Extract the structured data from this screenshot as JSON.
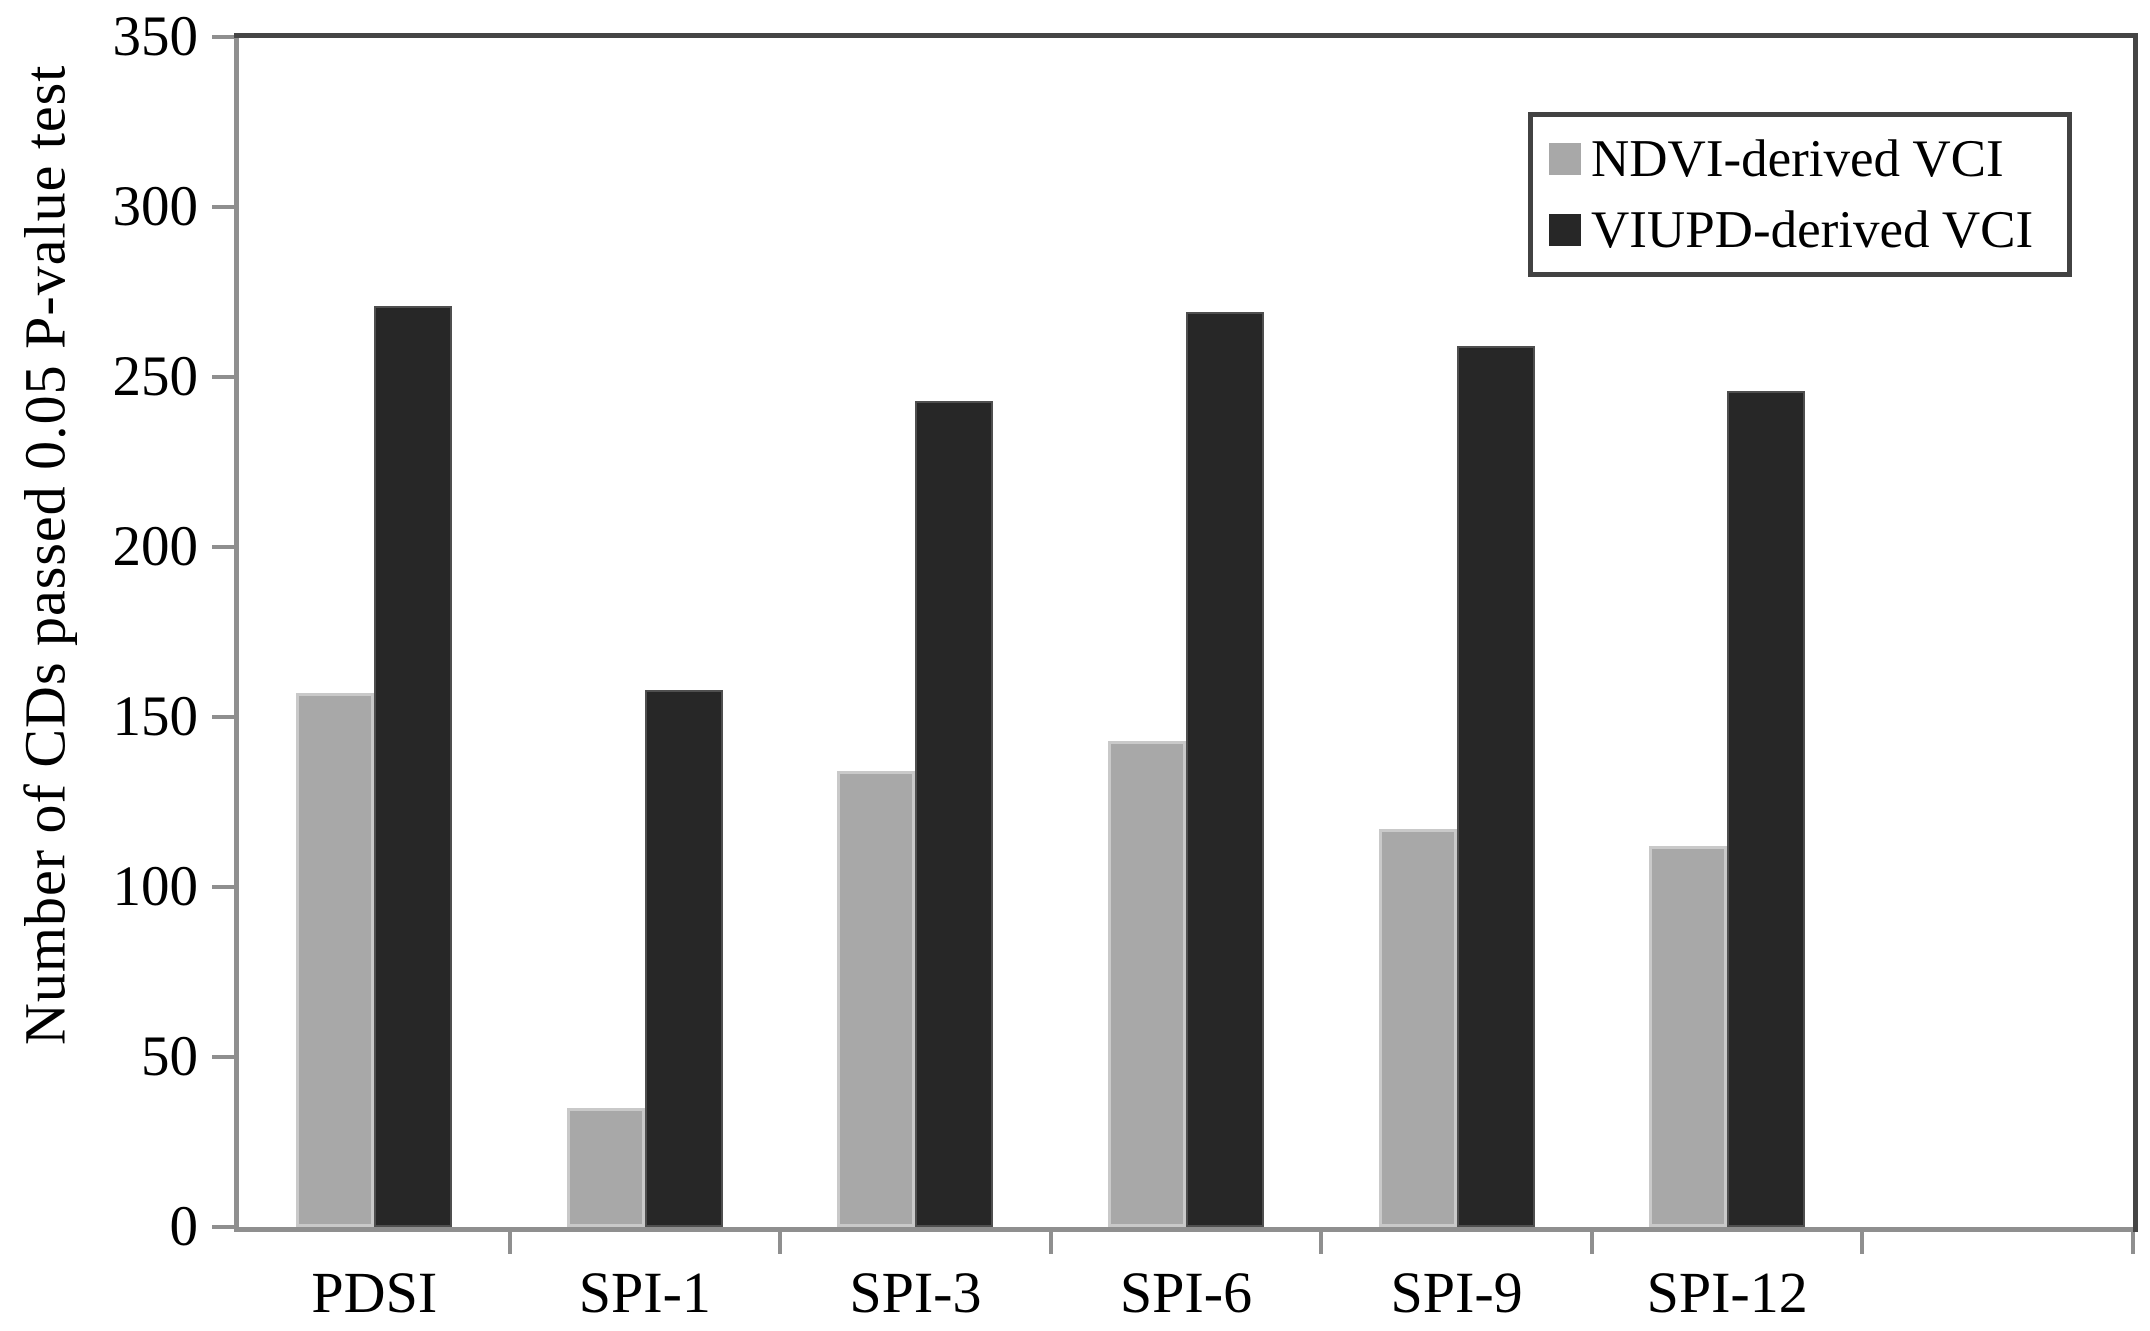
{
  "chart_data": {
    "type": "bar",
    "title": "",
    "categories": [
      "PDSI",
      "SPI-1",
      "SPI-3",
      "SPI-6",
      "SPI-9",
      "SPI-12"
    ],
    "series": [
      {
        "name": "NDVI-derived VCI",
        "color": "#a8a8a8",
        "edge_color": "#c9c9c9",
        "values": [
          157,
          35,
          134,
          143,
          117,
          112
        ]
      },
      {
        "name": "VIUPD-derived VCI",
        "color": "#272727",
        "edge_color": "#4f4f4f",
        "values": [
          271,
          158,
          243,
          269,
          259,
          246
        ]
      }
    ],
    "xlabel": "",
    "ylabel": "Number of CDs passed 0.05 P-value test",
    "ylim": [
      0,
      350
    ],
    "yticks": [
      0,
      50,
      100,
      150,
      200,
      250,
      300,
      350
    ],
    "grid": false,
    "legend_position": "top-right"
  },
  "colors": {
    "background": "#ffffff",
    "axis": "#8f8f8f",
    "frame": "#454545",
    "legend_border": "#424242",
    "text": "#000000"
  }
}
